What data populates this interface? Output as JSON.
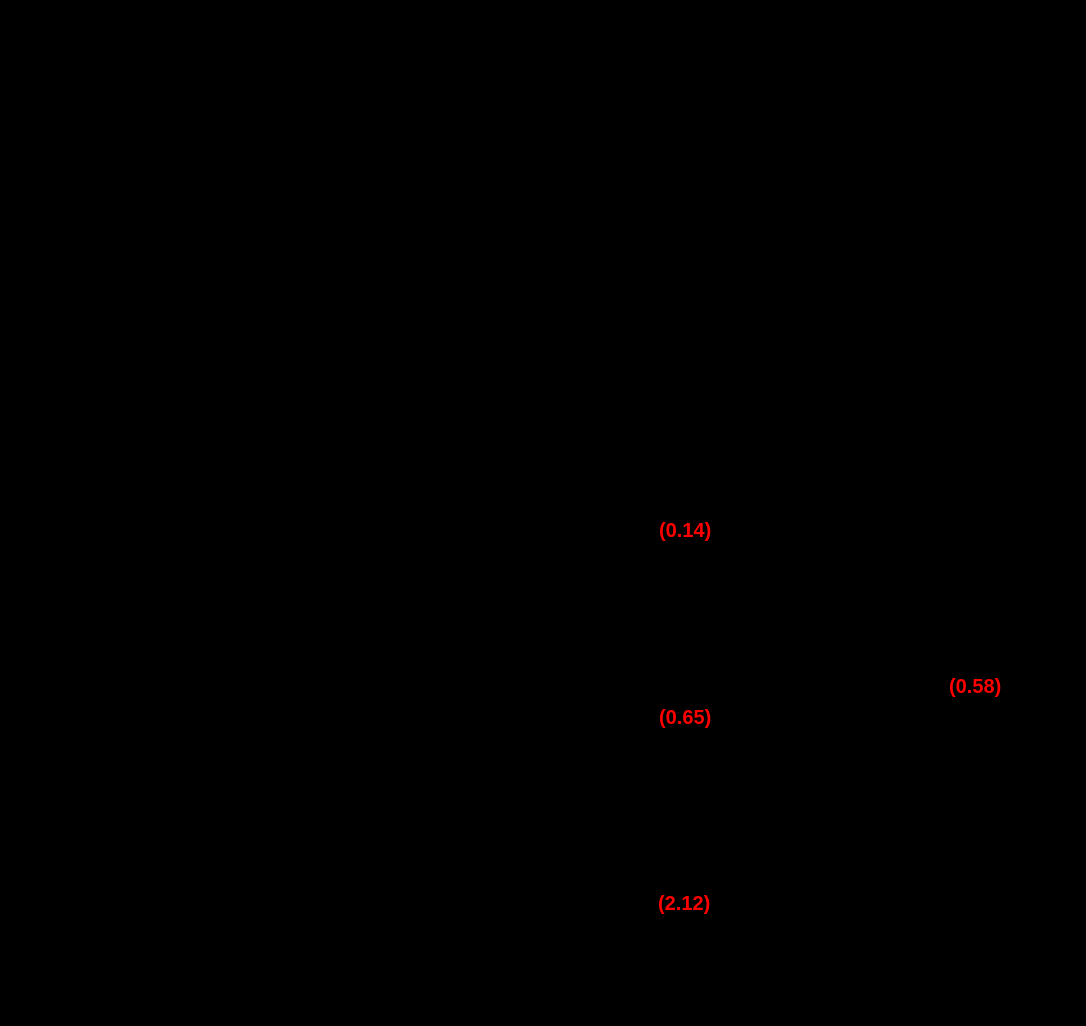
{
  "page": {
    "background_color": "#000000",
    "accent_color": "#ff0000"
  },
  "values": [
    {
      "text": "(0.14)"
    },
    {
      "text": "(0.58)"
    },
    {
      "text": "(0.65)"
    },
    {
      "text": "(2.12)"
    }
  ]
}
